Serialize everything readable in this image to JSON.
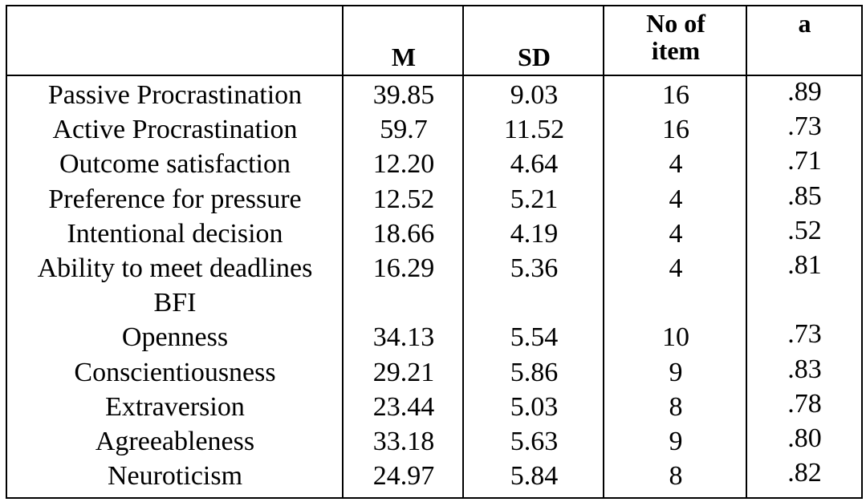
{
  "table": {
    "headers": [
      "",
      "M",
      "SD",
      "No of item",
      "a"
    ],
    "header_no_of_item_lines": [
      "No of",
      "item"
    ],
    "rows": [
      [
        "Passive Procrastination",
        "39.85",
        "9.03",
        "16",
        ".89"
      ],
      [
        "Active Procrastination",
        "59.7",
        "11.52",
        "16",
        ".73"
      ],
      [
        "Outcome satisfaction",
        "12.20",
        "4.64",
        "4",
        ".71"
      ],
      [
        "Preference for pressure",
        "12.52",
        "5.21",
        "4",
        ".85"
      ],
      [
        "Intentional decision",
        "18.66",
        "4.19",
        "4",
        ".52"
      ],
      [
        "Ability to meet deadlines",
        "16.29",
        "5.36",
        "4",
        ".81"
      ],
      [
        "BFI",
        "",
        "",
        "",
        ""
      ],
      [
        "Openness",
        "34.13",
        "5.54",
        "10",
        ".73"
      ],
      [
        "Conscientiousness",
        "29.21",
        "5.86",
        "9",
        ".83"
      ],
      [
        "Extraversion",
        "23.44",
        "5.03",
        "8",
        ".78"
      ],
      [
        "Agreeableness",
        "33.18",
        "5.63",
        "9",
        ".80"
      ],
      [
        "Neuroticism",
        "24.97",
        "5.84",
        "8",
        ".82"
      ]
    ]
  }
}
